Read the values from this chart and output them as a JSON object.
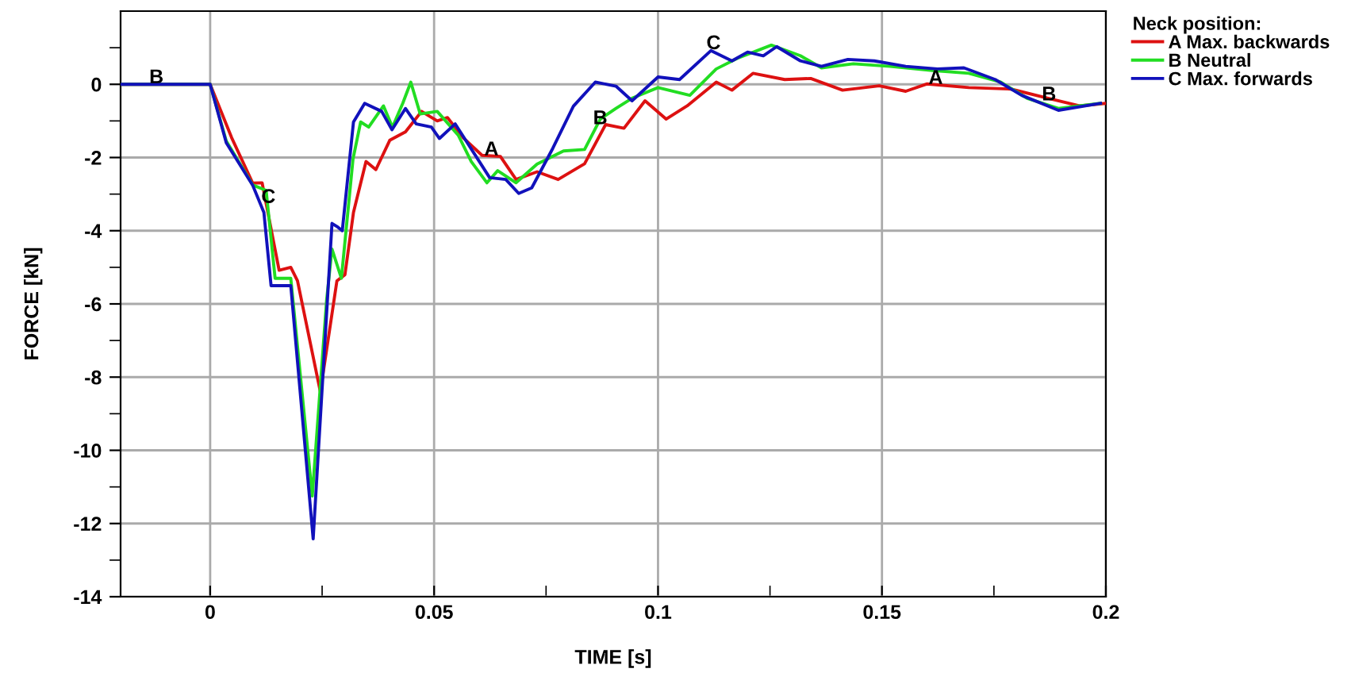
{
  "chart_data": {
    "type": "line",
    "xlabel": "TIME [s]",
    "ylabel": "FORCE [kN]",
    "legend_title": "Neck position:",
    "legend": "top right",
    "grid": true,
    "marker": "none",
    "line_style": "solid",
    "xlim": [
      -0.02,
      0.2
    ],
    "ylim": [
      -14,
      2
    ],
    "xticks": [
      0,
      0.05,
      0.1,
      0.15,
      0.2,
      {
        "value": 0.025,
        "label": null
      },
      {
        "value": 0.075,
        "label": null
      },
      {
        "value": 0.125,
        "label": null
      },
      {
        "value": 0.175,
        "label": null
      }
    ],
    "yticks": [
      -14,
      -12,
      -10,
      -8,
      -6,
      -4,
      -2,
      0,
      {
        "value": -13,
        "label": null
      },
      {
        "value": -11,
        "label": null
      },
      {
        "value": -9,
        "label": null
      },
      {
        "value": -7,
        "label": null
      },
      {
        "value": -5,
        "label": null
      },
      {
        "value": -3,
        "label": null
      },
      {
        "value": -1,
        "label": null
      },
      {
        "value": 1,
        "label": null
      }
    ],
    "series": [
      {
        "name": "A Max. backwards",
        "color": "#dd1111",
        "x": [
          -0.02,
          0,
          0.0048,
          0.0095,
          0.0116,
          0.0154,
          0.018,
          0.0195,
          0.0246,
          0.0283,
          0.0301,
          0.032,
          0.0348,
          0.037,
          0.0401,
          0.0436,
          0.0472,
          0.0507,
          0.053,
          0.0565,
          0.0607,
          0.0648,
          0.0683,
          0.073,
          0.0777,
          0.0836,
          0.0883,
          0.0924,
          0.0971,
          0.1018,
          0.1065,
          0.113,
          0.1165,
          0.1212,
          0.1283,
          0.1341,
          0.1412,
          0.1494,
          0.1553,
          0.16,
          0.1694,
          0.1788,
          0.1871,
          0.1941,
          0.2
        ],
        "values": [
          0,
          0,
          -1.46,
          -2.7,
          -2.69,
          -5.08,
          -5.0,
          -5.37,
          -8.4,
          -5.37,
          -5.2,
          -3.5,
          -2.11,
          -2.33,
          -1.53,
          -1.3,
          -0.74,
          -1.0,
          -0.91,
          -1.46,
          -1.94,
          -1.97,
          -2.6,
          -2.39,
          -2.6,
          -2.17,
          -1.1,
          -1.2,
          -0.45,
          -0.95,
          -0.59,
          0.06,
          -0.16,
          0.3,
          0.13,
          0.16,
          -0.16,
          -0.04,
          -0.19,
          0.01,
          -0.09,
          -0.13,
          -0.38,
          -0.59,
          -0.52
        ]
      },
      {
        "name": "B Neutral",
        "color": "#22dd22",
        "x": [
          -0.02,
          0,
          0.0036,
          0.0095,
          0.0125,
          0.0145,
          0.018,
          0.0228,
          0.026,
          0.0272,
          0.0293,
          0.0319,
          0.0336,
          0.0354,
          0.0387,
          0.0407,
          0.043,
          0.0448,
          0.0469,
          0.0507,
          0.0554,
          0.0583,
          0.0618,
          0.0642,
          0.0683,
          0.073,
          0.0789,
          0.0836,
          0.0871,
          0.0906,
          0.0942,
          0.1,
          0.1071,
          0.113,
          0.1177,
          0.1253,
          0.1318,
          0.1365,
          0.1436,
          0.1518,
          0.1612,
          0.1694,
          0.1765,
          0.1824,
          0.1894,
          0.1988
        ],
        "values": [
          0,
          0,
          -1.55,
          -2.75,
          -2.9,
          -5.3,
          -5.3,
          -11.25,
          -5.9,
          -4.5,
          -5.3,
          -2.04,
          -1.03,
          -1.17,
          -0.59,
          -1.17,
          -0.52,
          0.06,
          -0.81,
          -0.74,
          -1.39,
          -2.11,
          -2.69,
          -2.36,
          -2.69,
          -2.18,
          -1.82,
          -1.78,
          -0.95,
          -0.66,
          -0.38,
          -0.09,
          -0.3,
          0.42,
          0.71,
          1.07,
          0.78,
          0.45,
          0.56,
          0.49,
          0.38,
          0.3,
          0.06,
          -0.38,
          -0.66,
          -0.52
        ]
      },
      {
        "name": "C Max. forwards",
        "color": "#1111bb",
        "x": [
          -0.02,
          0,
          0.0036,
          0.0095,
          0.012,
          0.0136,
          0.018,
          0.023,
          0.0272,
          0.0285,
          0.0295,
          0.032,
          0.0345,
          0.0383,
          0.0406,
          0.0436,
          0.046,
          0.0494,
          0.0512,
          0.0547,
          0.059,
          0.0624,
          0.066,
          0.0689,
          0.0718,
          0.0765,
          0.0811,
          0.086,
          0.0906,
          0.0942,
          0.1,
          0.1048,
          0.1118,
          0.1165,
          0.12,
          0.1235,
          0.1265,
          0.1318,
          0.1365,
          0.1424,
          0.1483,
          0.1553,
          0.1624,
          0.1683,
          0.1753,
          0.1812,
          0.1894,
          0.1988
        ],
        "values": [
          0,
          0,
          -1.6,
          -2.76,
          -3.5,
          -5.5,
          -5.5,
          -12.42,
          -3.8,
          -3.9,
          -4.0,
          -1.03,
          -0.52,
          -0.74,
          -1.24,
          -0.66,
          -1.08,
          -1.17,
          -1.48,
          -1.08,
          -1.9,
          -2.55,
          -2.6,
          -2.98,
          -2.83,
          -1.75,
          -0.6,
          0.06,
          -0.05,
          -0.45,
          0.2,
          0.13,
          0.92,
          0.64,
          0.88,
          0.78,
          1.03,
          0.64,
          0.49,
          0.68,
          0.64,
          0.49,
          0.42,
          0.45,
          0.13,
          -0.3,
          -0.71,
          -0.52
        ]
      }
    ],
    "annotations": [
      {
        "text": "B",
        "x": -0.012,
        "y": 0.17
      },
      {
        "text": "C",
        "x": 0.013,
        "y": -3.1
      },
      {
        "text": "A",
        "x": 0.0628,
        "y": -1.8
      },
      {
        "text": "B",
        "x": 0.0871,
        "y": -0.95
      },
      {
        "text": "C",
        "x": 0.1124,
        "y": 1.1
      },
      {
        "text": "A",
        "x": 0.162,
        "y": 0.15
      },
      {
        "text": "B",
        "x": 0.1873,
        "y": -0.3
      }
    ]
  }
}
